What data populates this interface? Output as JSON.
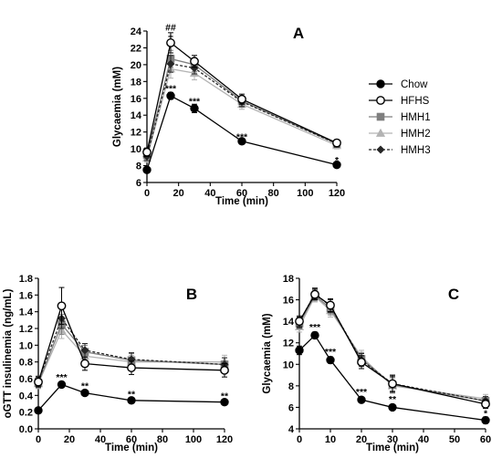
{
  "colors": {
    "Chow": "#000000",
    "HFHS": "#000000",
    "HMH1": "#7f7f7f",
    "HMH2": "#b3b3b3",
    "HMH3": "#262626"
  },
  "legend": [
    "Chow",
    "HFHS",
    "HMH1",
    "HMH2",
    "HMH3"
  ],
  "chart_data": [
    {
      "type": "line",
      "panel_label": "A",
      "xlabel": "Time (min)",
      "ylabel": "Glycaemia (mM)",
      "xlim": [
        0,
        120
      ],
      "ylim": [
        6,
        24
      ],
      "xticks": [
        0,
        20,
        40,
        60,
        80,
        100,
        120
      ],
      "yticks": [
        6,
        8,
        10,
        12,
        14,
        16,
        18,
        20,
        22,
        24
      ],
      "x": [
        0,
        15,
        30,
        60,
        120
      ],
      "series": [
        {
          "name": "Chow",
          "values": [
            7.5,
            16.3,
            14.8,
            10.9,
            8.1
          ],
          "errors": [
            0.3,
            0.4,
            0.5,
            0.3,
            0.2
          ]
        },
        {
          "name": "HFHS",
          "values": [
            9.6,
            22.6,
            20.4,
            15.9,
            10.7
          ],
          "errors": [
            0.5,
            1.2,
            0.7,
            0.6,
            0.4
          ]
        },
        {
          "name": "HMH1",
          "values": [
            9.3,
            20.7,
            20.0,
            15.7,
            10.6
          ],
          "errors": [
            0.5,
            1.0,
            0.8,
            0.6,
            0.4
          ]
        },
        {
          "name": "HMH2",
          "values": [
            8.9,
            19.5,
            19.0,
            15.3,
            10.4
          ],
          "errors": [
            0.5,
            1.1,
            0.8,
            0.6,
            0.4
          ]
        },
        {
          "name": "HMH3",
          "values": [
            9.1,
            20.1,
            19.6,
            15.6,
            10.6
          ],
          "errors": [
            0.5,
            1.0,
            0.7,
            0.6,
            0.4
          ]
        }
      ],
      "annotations": [
        {
          "x": 15,
          "y": 24.5,
          "text": "##"
        },
        {
          "x": 15,
          "y": 23.4,
          "text": "+"
        },
        {
          "x": 15,
          "y": 17.2,
          "text": "***"
        },
        {
          "x": 30,
          "y": 15.7,
          "text": "***"
        },
        {
          "x": 60,
          "y": 11.5,
          "text": "***"
        },
        {
          "x": 120,
          "y": 8.7,
          "text": "*"
        }
      ]
    },
    {
      "type": "line",
      "panel_label": "B",
      "xlabel": "Time (min)",
      "ylabel": "oGTT insulinemia (ng/mL)",
      "xlim": [
        0,
        120
      ],
      "ylim": [
        0,
        1.8
      ],
      "xticks": [
        0,
        20,
        40,
        60,
        80,
        100,
        120
      ],
      "yticks": [
        0.0,
        0.2,
        0.4,
        0.6,
        0.8,
        1.0,
        1.2,
        1.4,
        1.6,
        1.8
      ],
      "ytick_labels": [
        "0.0",
        "0.2",
        "0.4",
        "0.6",
        "0.8",
        "1.0",
        "1.2",
        "1.4",
        "1.6",
        "1.8"
      ],
      "x": [
        0,
        15,
        30,
        60,
        120
      ],
      "series": [
        {
          "name": "Chow",
          "values": [
            0.22,
            0.53,
            0.43,
            0.34,
            0.32
          ],
          "errors": [
            0.03,
            0.02,
            0.03,
            0.03,
            0.03
          ]
        },
        {
          "name": "HFHS",
          "values": [
            0.56,
            1.47,
            0.78,
            0.73,
            0.7
          ],
          "errors": [
            0.06,
            0.22,
            0.08,
            0.08,
            0.08
          ]
        },
        {
          "name": "HMH1",
          "values": [
            0.55,
            1.25,
            0.92,
            0.82,
            0.77
          ],
          "errors": [
            0.06,
            0.12,
            0.08,
            0.08,
            0.08
          ]
        },
        {
          "name": "HMH2",
          "values": [
            0.54,
            1.18,
            0.87,
            0.8,
            0.8
          ],
          "errors": [
            0.06,
            0.1,
            0.08,
            0.08,
            0.08
          ]
        },
        {
          "name": "HMH3",
          "values": [
            0.57,
            1.32,
            0.94,
            0.83,
            0.77
          ],
          "errors": [
            0.06,
            0.12,
            0.08,
            0.08,
            0.08
          ]
        }
      ],
      "annotations": [
        {
          "x": 15,
          "y": 0.62,
          "text": "***"
        },
        {
          "x": 30,
          "y": 0.52,
          "text": "**"
        },
        {
          "x": 60,
          "y": 0.42,
          "text": "**"
        },
        {
          "x": 120,
          "y": 0.4,
          "text": "**"
        }
      ]
    },
    {
      "type": "line",
      "panel_label": "C",
      "xlabel": "Time (min)",
      "ylabel": "Glycaemia (mM)",
      "xlim": [
        0,
        60
      ],
      "ylim": [
        4,
        18
      ],
      "xticks": [
        0,
        10,
        20,
        30,
        40,
        50,
        60
      ],
      "yticks": [
        4,
        6,
        8,
        10,
        12,
        14,
        16,
        18
      ],
      "x": [
        0,
        5,
        10,
        20,
        30,
        60
      ],
      "series": [
        {
          "name": "Chow",
          "values": [
            11.3,
            12.7,
            10.4,
            6.7,
            6.0,
            4.8
          ],
          "errors": [
            0.4,
            0.3,
            0.3,
            0.2,
            0.2,
            0.3
          ]
        },
        {
          "name": "HFHS",
          "values": [
            14.0,
            16.5,
            15.5,
            10.2,
            8.2,
            6.3
          ],
          "errors": [
            0.5,
            0.5,
            0.6,
            0.6,
            0.8,
            0.4
          ]
        },
        {
          "name": "HMH1",
          "values": [
            13.8,
            16.4,
            15.2,
            10.5,
            8.1,
            6.6
          ],
          "errors": [
            0.5,
            0.5,
            0.6,
            0.6,
            0.7,
            0.4
          ]
        },
        {
          "name": "HMH2",
          "values": [
            13.5,
            16.3,
            15.0,
            10.7,
            8.0,
            6.8
          ],
          "errors": [
            0.5,
            0.5,
            0.6,
            0.6,
            0.7,
            0.4
          ]
        },
        {
          "name": "HMH3",
          "values": [
            13.9,
            16.6,
            15.4,
            10.4,
            8.2,
            6.6
          ],
          "errors": [
            0.5,
            0.5,
            0.6,
            0.6,
            0.7,
            0.4
          ]
        }
      ],
      "annotations": [
        {
          "x": 5,
          "y": 13.5,
          "text": "***"
        },
        {
          "x": 10,
          "y": 11.2,
          "text": "***"
        },
        {
          "x": 20,
          "y": 7.5,
          "text": "***"
        },
        {
          "x": 30,
          "y": 6.8,
          "text": "**"
        },
        {
          "x": 60,
          "y": 5.5,
          "text": "*"
        }
      ]
    }
  ]
}
